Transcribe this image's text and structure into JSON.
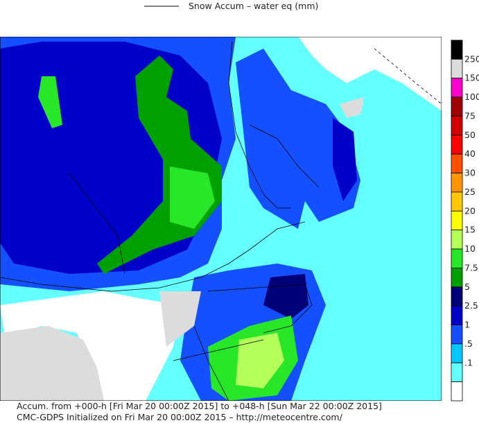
{
  "legend": {
    "title": "Snow Accum – water eq (mm)"
  },
  "colorbar": {
    "labels": [
      "250",
      "150",
      "100",
      "75",
      "50",
      "40",
      "30",
      "25",
      "20",
      "15",
      "10",
      "7.5",
      "5",
      "2.5",
      "1",
      ".5",
      ".1"
    ],
    "colors": [
      "#000000",
      "#dcdcdc",
      "#ff00cc",
      "#a00000",
      "#d20000",
      "#ff0000",
      "#ff5000",
      "#ff9600",
      "#ffc800",
      "#ffff00",
      "#b4ff5a",
      "#28e628",
      "#00a000",
      "#000078",
      "#0000c8",
      "#1450ff",
      "#00c8ff",
      "#64ffff",
      "#ffffff"
    ]
  },
  "footer": {
    "line1": "Accum. from +000-h [Fri Mar 20 00:00Z 2015] to +048-h [Sun Mar 22 00:00Z 2015]",
    "line2": "CMC-GDPS Initialized on Fri Mar 20 00:00Z 2015 – http://meteocentre.com/"
  }
}
